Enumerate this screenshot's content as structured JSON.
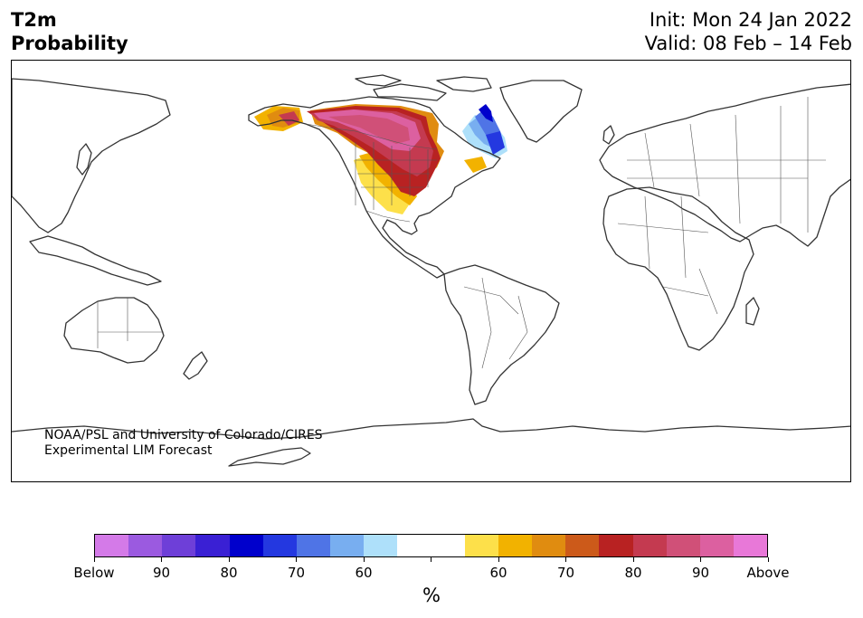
{
  "header": {
    "variable": "T2m",
    "product": "Probability",
    "init": "Init: Mon 24 Jan 2022",
    "valid": "Valid: 08 Feb – 14 Feb"
  },
  "credit": {
    "line1": "NOAA/PSL and University of Colorado/CIRES",
    "line2": "Experimental LIM Forecast"
  },
  "colorbar": {
    "unit": "%",
    "colors": [
      "#d47ae8",
      "#9b5ae0",
      "#6e3fd8",
      "#3a20d4",
      "#0000cc",
      "#2438e0",
      "#4f74e6",
      "#78aef0",
      "#aee0fa",
      "#ffffff",
      "#ffffff",
      "#fde04a",
      "#f2b200",
      "#e08c10",
      "#cc5a1a",
      "#b82222",
      "#c43a50",
      "#d05078",
      "#dc60a0",
      "#e878d8"
    ],
    "labels": [
      "Below",
      "90",
      "80",
      "70",
      "60",
      "",
      "60",
      "70",
      "80",
      "90",
      "Above"
    ]
  },
  "map": {
    "projection": "Plate Carrée, centered 180°",
    "regions": [
      {
        "name": "North America",
        "signal": "Above",
        "probability_max": 90
      },
      {
        "name": "Alaska",
        "signal": "Above",
        "probability_max": 80
      },
      {
        "name": "Eastern Canada / Labrador",
        "signal": "Below",
        "probability_max": 80
      }
    ]
  }
}
